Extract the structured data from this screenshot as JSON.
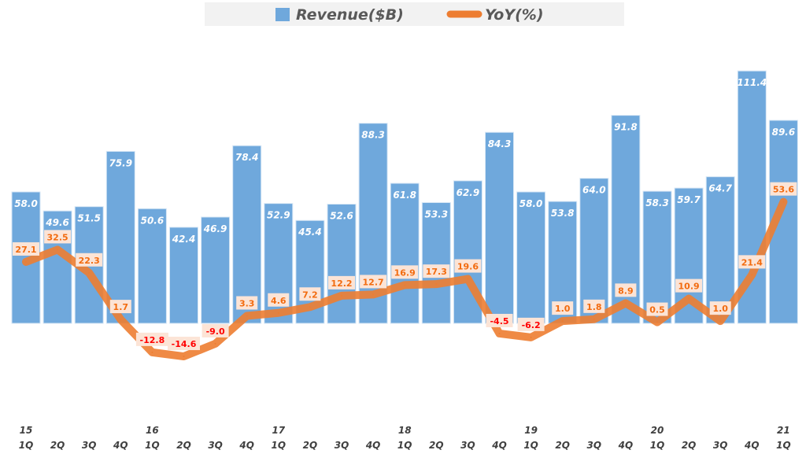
{
  "chart_data": {
    "type": "bar",
    "title": "",
    "legend": {
      "position": "top",
      "entries": [
        "Revenue($B)",
        "YoY(%)"
      ]
    },
    "categories": [
      "15 1Q",
      "2Q",
      "3Q",
      "4Q",
      "16 1Q",
      "2Q",
      "3Q",
      "4Q",
      "17 1Q",
      "2Q",
      "3Q",
      "4Q",
      "18 1Q",
      "2Q",
      "3Q",
      "4Q",
      "19 1Q",
      "2Q",
      "3Q",
      "4Q",
      "20 1Q",
      "2Q",
      "3Q",
      "4Q",
      "21 1Q"
    ],
    "x_years": [
      "15",
      "",
      "",
      "",
      "16",
      "",
      "",
      "",
      "17",
      "",
      "",
      "",
      "18",
      "",
      "",
      "",
      "19",
      "",
      "",
      "",
      "20",
      "",
      "",
      "",
      "21"
    ],
    "x_quarters": [
      "1Q",
      "2Q",
      "3Q",
      "4Q",
      "1Q",
      "2Q",
      "3Q",
      "4Q",
      "1Q",
      "2Q",
      "3Q",
      "4Q",
      "1Q",
      "2Q",
      "3Q",
      "4Q",
      "1Q",
      "2Q",
      "3Q",
      "4Q",
      "1Q",
      "2Q",
      "3Q",
      "4Q",
      "1Q"
    ],
    "series": [
      {
        "name": "Revenue($B)",
        "type": "bar",
        "color": "#6fa8dc",
        "values": [
          58.0,
          49.6,
          51.5,
          75.9,
          50.6,
          42.4,
          46.9,
          78.4,
          52.9,
          45.4,
          52.6,
          88.3,
          61.8,
          53.3,
          62.9,
          84.3,
          58.0,
          53.8,
          64.0,
          91.8,
          58.3,
          59.7,
          64.7,
          111.4,
          89.6
        ],
        "labels": [
          "58.0",
          "49.6",
          "51.5",
          "75.9",
          "50.6",
          "42.4",
          "46.9",
          "78.4",
          "52.9",
          "45.4",
          "52.6",
          "88.3",
          "61.8",
          "53.3",
          "62.9",
          "84.3",
          "58.0",
          "53.8",
          "64.0",
          "91.8",
          "58.3",
          "59.7",
          "64.7",
          "111.4",
          "89.6"
        ]
      },
      {
        "name": "YoY(%)",
        "type": "line",
        "color": "#ed7d31",
        "values": [
          27.1,
          32.5,
          22.3,
          1.7,
          -12.8,
          -14.6,
          -9.0,
          3.3,
          4.6,
          7.2,
          12.2,
          12.7,
          16.9,
          17.3,
          19.6,
          -4.5,
          -6.2,
          1.0,
          1.8,
          8.9,
          0.5,
          10.9,
          1.0,
          21.4,
          53.6
        ],
        "labels": [
          "27.1",
          "32.5",
          "22.3",
          "1.7",
          "-12.8",
          "-14.6",
          "-9.0",
          "3.3",
          "4.6",
          "7.2",
          "12.2",
          "12.7",
          "16.9",
          "17.3",
          "19.6",
          "-4.5",
          "-6.2",
          "1.0",
          "1.8",
          "8.9",
          "0.5",
          "10.9",
          "1.0",
          "21.4",
          "53.6"
        ]
      }
    ],
    "ylim": [
      -60,
      112
    ],
    "grid": false,
    "colors": {
      "positive_label": "#f26b0f",
      "negative_label": "#ff0000",
      "label_box": "#fce4d6",
      "legend_bg": "#f2f2f2"
    }
  }
}
